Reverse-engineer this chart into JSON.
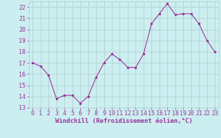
{
  "x": [
    0,
    1,
    2,
    3,
    4,
    5,
    6,
    7,
    8,
    9,
    10,
    11,
    12,
    13,
    14,
    15,
    16,
    17,
    18,
    19,
    20,
    21,
    22,
    23
  ],
  "y": [
    17.0,
    16.7,
    15.9,
    13.8,
    14.1,
    14.1,
    13.4,
    14.0,
    15.7,
    17.0,
    17.8,
    17.3,
    16.6,
    16.6,
    17.8,
    20.5,
    21.4,
    22.3,
    21.3,
    21.4,
    21.4,
    20.5,
    19.0,
    18.0
  ],
  "line_color": "#993399",
  "marker": ".",
  "marker_color": "#993399",
  "bg_color": "#cceef0",
  "grid_color": "#aacccc",
  "xlabel": "Windchill (Refroidissement éolien,°C)",
  "ylim": [
    13,
    22.5
  ],
  "yticks": [
    13,
    14,
    15,
    16,
    17,
    18,
    19,
    20,
    21,
    22
  ],
  "xticks": [
    0,
    1,
    2,
    3,
    4,
    5,
    6,
    7,
    8,
    9,
    10,
    11,
    12,
    13,
    14,
    15,
    16,
    17,
    18,
    19,
    20,
    21,
    22,
    23
  ],
  "xlabel_fontsize": 6.5,
  "tick_fontsize": 6.0
}
